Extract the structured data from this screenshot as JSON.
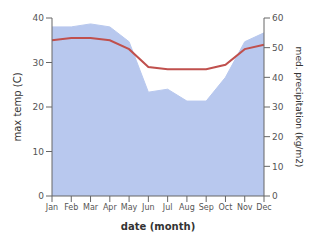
{
  "chart_data": {
    "type": "line",
    "categories": [
      "Jan",
      "Feb",
      "Mar",
      "Apr",
      "May",
      "Jun",
      "Jul",
      "Aug",
      "Sep",
      "Oct",
      "Nov",
      "Dec"
    ],
    "series": [
      {
        "type": "area",
        "axis": "y2",
        "color": "#b8c8ee",
        "values": [
          57,
          57,
          58,
          57,
          52,
          35,
          36,
          32,
          32,
          40,
          52,
          55
        ]
      },
      {
        "type": "line",
        "color": "#c0504d",
        "values": [
          35,
          35.5,
          35.5,
          35,
          33,
          29,
          28.5,
          28.5,
          28.5,
          29.5,
          33,
          34
        ]
      }
    ],
    "xlabel": "date (month)",
    "ylabel": "max temp (C)",
    "y2label": "med. precipitation (kg/m2)",
    "ylim": [
      0,
      40
    ],
    "yticks": [
      0,
      10,
      20,
      30,
      40
    ],
    "y2lim": [
      0,
      60
    ],
    "y2ticks": [
      0,
      10,
      20,
      30,
      40,
      50,
      60
    ],
    "grid": false
  }
}
